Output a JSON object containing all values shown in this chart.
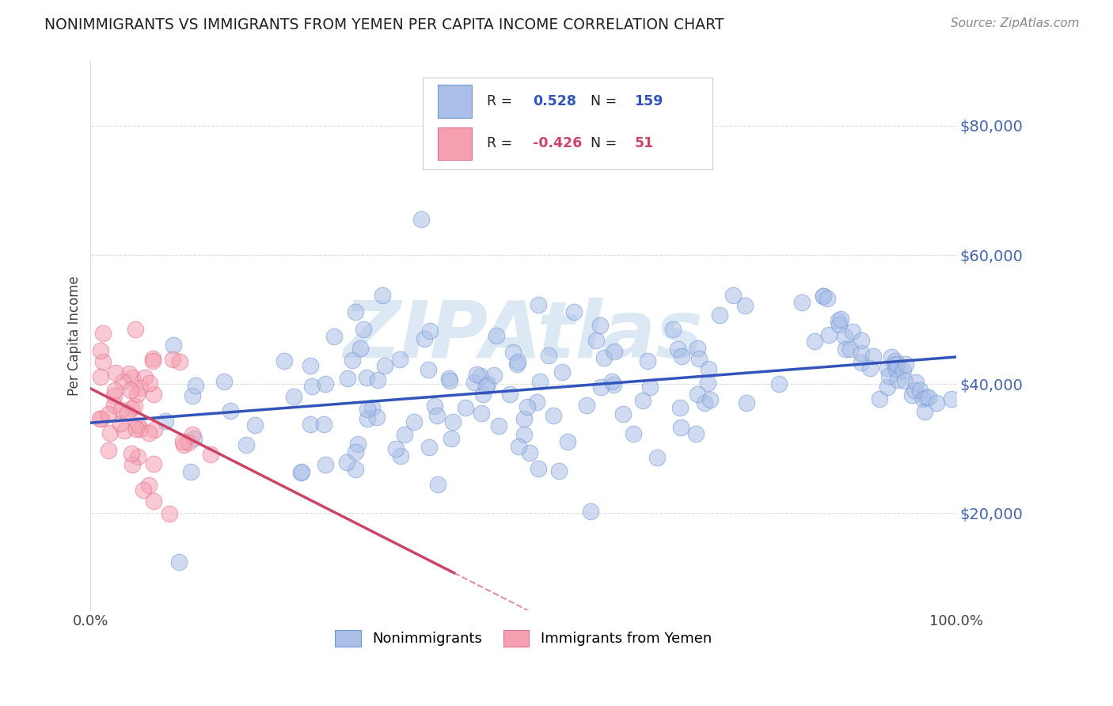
{
  "title": "NONIMMIGRANTS VS IMMIGRANTS FROM YEMEN PER CAPITA INCOME CORRELATION CHART",
  "source": "Source: ZipAtlas.com",
  "ylabel": "Per Capita Income",
  "yticks": [
    20000,
    40000,
    60000,
    80000
  ],
  "ytick_labels": [
    "$20,000",
    "$40,000",
    "$60,000",
    "$80,000"
  ],
  "xlim": [
    0.0,
    1.0
  ],
  "ylim": [
    5000,
    90000
  ],
  "blue_fill": "#aabfe8",
  "blue_edge": "#7098d0",
  "blue_line": "#3355bb",
  "pink_fill": "#f5a0b0",
  "pink_edge": "#e07090",
  "pink_line": "#cc4466",
  "pink_line_solid_end": 0.42,
  "legend_blue_r": "0.528",
  "legend_blue_n": "159",
  "legend_pink_r": "-0.426",
  "legend_pink_n": "51",
  "legend_label_blue": "Nonimmigrants",
  "legend_label_pink": "Immigrants from Yemen",
  "background_color": "#FFFFFF",
  "grid_color": "#bbbbbb",
  "tick_color": "#4466aa",
  "title_color": "#222222",
  "source_color": "#888888"
}
